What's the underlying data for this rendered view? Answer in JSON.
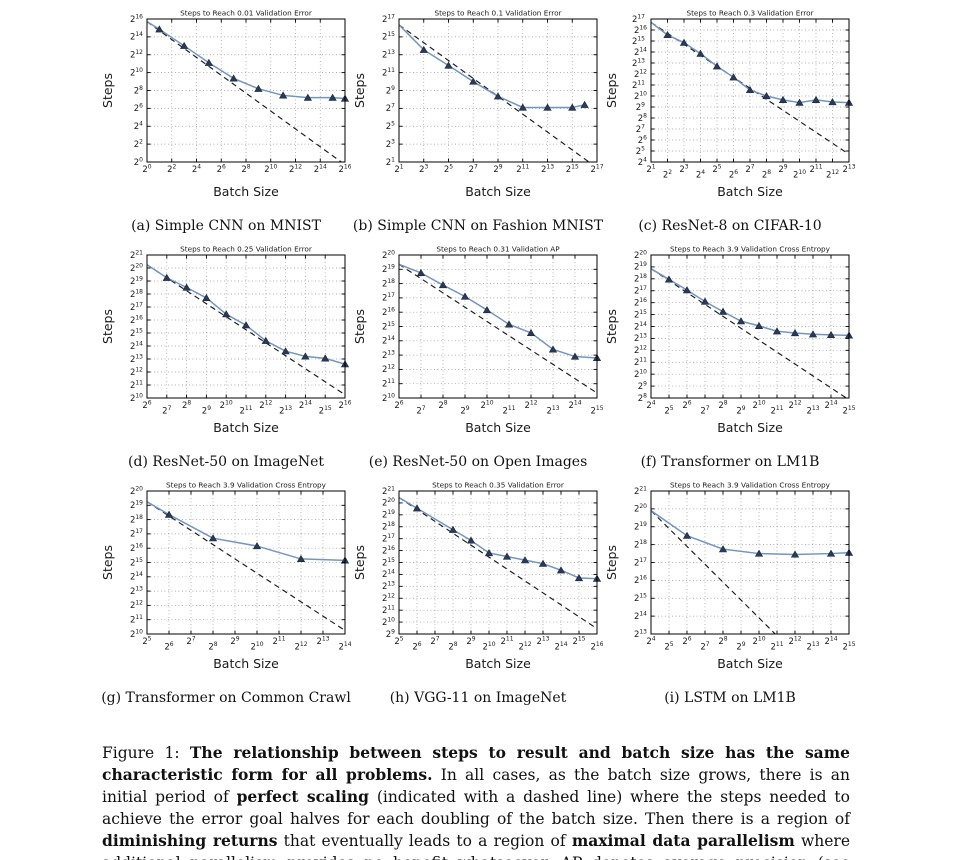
{
  "page": {
    "background": "#ffffff"
  },
  "colors": {
    "curve": "#7495bf",
    "marker_fill": "#2b3a55",
    "marker_edge": "#1c2840",
    "perfect_scaling_dash": "#1a1a1a",
    "grid": "#8c8c8c",
    "axis": "#000000",
    "text": "#1a1a1a"
  },
  "chart_data": {
    "type": "line",
    "scale": "log2-log2",
    "xlabel": "Batch Size",
    "ylabel": "Steps",
    "tick_format": "2^k",
    "grid": "dotted",
    "legend": "none",
    "note": "x and y values are base-2 exponents; solid series = measured steps-to-result, dashed series = perfect scaling line",
    "plots": [
      {
        "id": "a",
        "title": "Steps to Reach 0.01 Validation Error",
        "caption": "(a) Simple CNN on MNIST",
        "x_log2_range": [
          0,
          16
        ],
        "x_tick_step": 2,
        "y_log2_range": [
          0,
          16
        ],
        "y_tick_step": 2,
        "series_x_log2": [
          0,
          1,
          3,
          5,
          7,
          9,
          11,
          13,
          15,
          16
        ],
        "series_y_log2": [
          15.7,
          14.85,
          13.0,
          11.1,
          9.35,
          8.2,
          7.45,
          7.2,
          7.2,
          7.1
        ],
        "perfect_scaling": {
          "x_log2": [
            0,
            16
          ],
          "y_log2": [
            15.7,
            -0.3
          ]
        }
      },
      {
        "id": "b",
        "title": "Steps to Reach 0.1 Validation Error",
        "caption": "(b) Simple CNN on Fashion MNIST",
        "x_log2_range": [
          1,
          17
        ],
        "x_tick_step": 2,
        "y_log2_range": [
          1,
          17
        ],
        "y_tick_step": 2,
        "series_x_log2": [
          1,
          3,
          5,
          7,
          9,
          11,
          13,
          15,
          16
        ],
        "series_y_log2": [
          16.35,
          13.55,
          11.8,
          10.0,
          8.35,
          7.1,
          7.1,
          7.1,
          7.4
        ],
        "perfect_scaling": {
          "x_log2": [
            1,
            17
          ],
          "y_log2": [
            16.35,
            0.35
          ]
        }
      },
      {
        "id": "c",
        "title": "Steps to Reach 0.3 Validation Error",
        "caption": "(c) ResNet-8 on CIFAR-10",
        "x_log2_range": [
          1,
          13
        ],
        "x_tick_step": 1,
        "y_log2_range": [
          4,
          17
        ],
        "y_tick_step": 1,
        "series_x_log2": [
          1,
          2,
          3,
          4,
          5,
          6,
          7,
          8,
          9,
          10,
          11,
          12,
          13
        ],
        "series_y_log2": [
          16.7,
          15.55,
          14.85,
          13.85,
          12.7,
          11.7,
          10.55,
          10.0,
          9.65,
          9.4,
          9.65,
          9.45,
          9.4
        ],
        "perfect_scaling": {
          "x_log2": [
            1,
            13
          ],
          "y_log2": [
            16.7,
            4.7
          ]
        }
      },
      {
        "id": "d",
        "title": "Steps to Reach 0.25 Validation Error",
        "caption": "(d) ResNet-50 on ImageNet",
        "x_log2_range": [
          6,
          16
        ],
        "x_tick_step": 1,
        "y_log2_range": [
          10,
          21
        ],
        "y_tick_step": 1,
        "series_x_log2": [
          6,
          7,
          8,
          9,
          10,
          11,
          12,
          13,
          14,
          15,
          16
        ],
        "series_y_log2": [
          20.25,
          19.25,
          18.5,
          17.7,
          16.45,
          15.6,
          14.4,
          13.6,
          13.2,
          13.05,
          12.6
        ],
        "perfect_scaling": {
          "x_log2": [
            6,
            16
          ],
          "y_log2": [
            20.25,
            10.25
          ]
        }
      },
      {
        "id": "e",
        "title": "Steps to Reach 0.31 Validation AP",
        "caption": "(e) ResNet-50 on Open Images",
        "x_log2_range": [
          6,
          15
        ],
        "x_tick_step": 1,
        "y_log2_range": [
          10,
          20
        ],
        "y_tick_step": 1,
        "series_x_log2": [
          6,
          7,
          8,
          9,
          10,
          11,
          12,
          13,
          14,
          15
        ],
        "series_y_log2": [
          19.35,
          18.75,
          17.9,
          17.1,
          16.15,
          15.15,
          14.55,
          13.4,
          12.9,
          12.8
        ],
        "perfect_scaling": {
          "x_log2": [
            6,
            15
          ],
          "y_log2": [
            19.35,
            10.35
          ]
        }
      },
      {
        "id": "f",
        "title": "Steps to Reach 3.9 Validation Cross Entropy",
        "caption": "(f) Transformer on LM1B",
        "x_log2_range": [
          4,
          15
        ],
        "x_tick_step": 1,
        "y_log2_range": [
          8,
          20
        ],
        "y_tick_step": 1,
        "series_x_log2": [
          4,
          5,
          6,
          7,
          8,
          9,
          10,
          11,
          12,
          13,
          14,
          15
        ],
        "series_y_log2": [
          18.85,
          17.95,
          17.05,
          16.1,
          15.25,
          14.45,
          14.05,
          13.6,
          13.45,
          13.35,
          13.3,
          13.25
        ],
        "perfect_scaling": {
          "x_log2": [
            4,
            15
          ],
          "y_log2": [
            18.85,
            7.85
          ]
        }
      },
      {
        "id": "g",
        "title": "Steps to Reach 3.9 Validation Cross Entropy",
        "caption": "(g) Transformer on Common Crawl",
        "x_log2_range": [
          5,
          14
        ],
        "x_tick_step": 1,
        "y_log2_range": [
          10,
          20
        ],
        "y_tick_step": 1,
        "series_x_log2": [
          5,
          6,
          8,
          10,
          12,
          14
        ],
        "series_y_log2": [
          19.25,
          18.35,
          16.7,
          16.15,
          15.25,
          15.15
        ],
        "perfect_scaling": {
          "x_log2": [
            5,
            14
          ],
          "y_log2": [
            19.25,
            10.25
          ]
        }
      },
      {
        "id": "h",
        "title": "Steps to Reach 0.35 Validation Error",
        "caption": "(h) VGG-11 on ImageNet",
        "x_log2_range": [
          5,
          16
        ],
        "x_tick_step": 1,
        "y_log2_range": [
          9,
          21
        ],
        "y_tick_step": 1,
        "series_x_log2": [
          5,
          6,
          8,
          9,
          10,
          11,
          12,
          13,
          14,
          15,
          16
        ],
        "series_y_log2": [
          20.45,
          19.55,
          17.75,
          16.85,
          15.8,
          15.5,
          15.2,
          14.9,
          14.35,
          13.7,
          13.65
        ],
        "perfect_scaling": {
          "x_log2": [
            5,
            16
          ],
          "y_log2": [
            20.45,
            9.45
          ]
        }
      },
      {
        "id": "i",
        "title": "Steps to Reach 3.9 Validation Cross Entropy",
        "caption": "(i) LSTM on LM1B",
        "x_log2_range": [
          4,
          15
        ],
        "x_tick_step": 1,
        "y_log2_range": [
          13,
          21
        ],
        "y_tick_step": 1,
        "series_x_log2": [
          4,
          6,
          8,
          10,
          12,
          14,
          15
        ],
        "series_y_log2": [
          19.9,
          18.5,
          17.75,
          17.5,
          17.45,
          17.5,
          17.55
        ],
        "perfect_scaling": {
          "x_log2": [
            4,
            15
          ],
          "y_log2": [
            19.9,
            8.9
          ]
        }
      }
    ]
  },
  "figure_caption": {
    "segments": [
      {
        "text": "Figure 1: ",
        "bold": false
      },
      {
        "text": "The relationship between steps to result and batch size has the same characteristic form for all problems.",
        "bold": true
      },
      {
        "text": " In all cases, as the batch size grows, there is an initial period of ",
        "bold": false
      },
      {
        "text": "perfect scaling",
        "bold": true
      },
      {
        "text": " (indicated with a dashed line) where the steps needed to achieve the error goal halves for each doubling of the batch size. Then there is a region of ",
        "bold": false
      },
      {
        "text": "diminishing returns",
        "bold": true
      },
      {
        "text": " that eventually leads to a region of ",
        "bold": false
      },
      {
        "text": "maximal data parallelism",
        "bold": true
      },
      {
        "text": " where additional parallelism provides no benefit whatsoever. AP denotes average precision (see Appendix A).",
        "bold": false
      }
    ]
  }
}
